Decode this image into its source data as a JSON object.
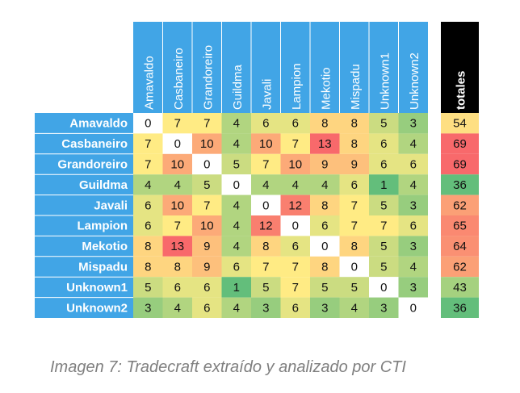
{
  "chart_data": {
    "type": "heatmap",
    "title": "",
    "columns": [
      "Amavaldo",
      "Casbaneiro",
      "Grandoreiro",
      "Guildma",
      "Javali",
      "Lampion",
      "Mekotio",
      "Mispadu",
      "Unknown1",
      "Unknown2"
    ],
    "rows": [
      "Amavaldo",
      "Casbaneiro",
      "Grandoreiro",
      "Guildma",
      "Javali",
      "Lampion",
      "Mekotio",
      "Mispadu",
      "Unknown1",
      "Unknown2"
    ],
    "values": [
      [
        0,
        7,
        7,
        4,
        6,
        6,
        8,
        8,
        5,
        3
      ],
      [
        7,
        0,
        10,
        4,
        10,
        7,
        13,
        8,
        6,
        4
      ],
      [
        7,
        10,
        0,
        5,
        7,
        10,
        9,
        9,
        6,
        6
      ],
      [
        4,
        4,
        5,
        0,
        4,
        4,
        4,
        6,
        1,
        4
      ],
      [
        6,
        10,
        7,
        4,
        0,
        12,
        8,
        7,
        5,
        3
      ],
      [
        6,
        7,
        10,
        4,
        12,
        0,
        6,
        7,
        7,
        6
      ],
      [
        8,
        13,
        9,
        4,
        8,
        6,
        0,
        8,
        5,
        3
      ],
      [
        8,
        8,
        9,
        6,
        7,
        7,
        8,
        0,
        5,
        4
      ],
      [
        5,
        6,
        6,
        1,
        5,
        7,
        5,
        5,
        0,
        3
      ],
      [
        3,
        4,
        6,
        4,
        3,
        6,
        3,
        4,
        3,
        0
      ]
    ],
    "totals_label": "totales",
    "totals": [
      54,
      69,
      69,
      36,
      62,
      65,
      64,
      62,
      43,
      36
    ],
    "color_scale": {
      "low": "#63be7b",
      "mid": "#ffeb84",
      "high": "#f8696b",
      "diagonal": "#ffffff"
    },
    "header_color": "#41a5e6",
    "totals_header_color": "#000000"
  },
  "caption": "Imagen 7: Tradecraft extraído y analizado por CTI"
}
